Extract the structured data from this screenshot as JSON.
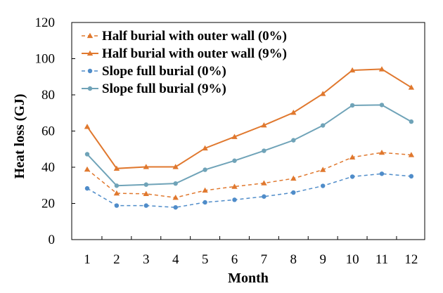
{
  "chart_data": {
    "type": "line",
    "xlabel": "Month",
    "ylabel": "Heat loss (GJ)",
    "x": [
      1,
      2,
      3,
      4,
      5,
      6,
      7,
      8,
      9,
      10,
      11,
      12
    ],
    "ylim": [
      0,
      120
    ],
    "yticks": [
      0,
      20,
      40,
      60,
      80,
      100,
      120
    ],
    "grid": false,
    "legend_position": "top-left",
    "series": [
      {
        "name": "Half burial with outer wall (0%)",
        "color": "#E0782E",
        "marker": "triangle",
        "dashed": true,
        "values": [
          38.8,
          25.6,
          25.3,
          23.2,
          27.2,
          29.3,
          31.2,
          33.8,
          38.6,
          45.5,
          48.1,
          46.8
        ]
      },
      {
        "name": "Half burial with outer wall (9%)",
        "color": "#E0782E",
        "marker": "triangle",
        "dashed": false,
        "values": [
          62.4,
          39.3,
          40.2,
          40.2,
          50.5,
          56.8,
          63.2,
          70.2,
          80.6,
          93.6,
          94.2,
          84.1
        ]
      },
      {
        "name": "Slope full burial (0%)",
        "color": "#4F8CC9",
        "marker": "circle",
        "dashed": true,
        "values": [
          28.3,
          18.8,
          18.8,
          17.8,
          20.6,
          22.0,
          23.8,
          26.0,
          29.7,
          34.8,
          36.4,
          35.0
        ]
      },
      {
        "name": "Slope full burial (9%)",
        "color": "#6FA3B8",
        "marker": "circle",
        "dashed": false,
        "values": [
          47.2,
          29.8,
          30.4,
          31.0,
          38.6,
          43.6,
          49.1,
          54.9,
          63.1,
          74.2,
          74.4,
          65.2
        ]
      }
    ]
  }
}
